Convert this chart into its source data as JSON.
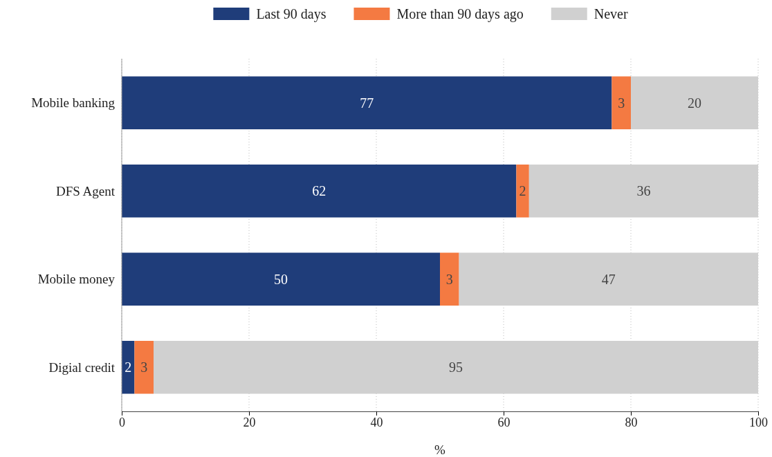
{
  "chart_data": {
    "type": "bar",
    "orientation": "horizontal",
    "stacked": true,
    "xlabel": "%",
    "categories": [
      "Mobile banking",
      "DFS Agent",
      "Mobile money",
      "Digial credit"
    ],
    "series": [
      {
        "name": "Last 90 days",
        "color": "#1f3d7a",
        "values": [
          77,
          62,
          50,
          2
        ]
      },
      {
        "name": "More than 90 days ago",
        "color": "#f47a42",
        "values": [
          3,
          2,
          3,
          3
        ]
      },
      {
        "name": "Never",
        "color": "#d0d0d0",
        "values": [
          20,
          36,
          47,
          95
        ]
      }
    ],
    "xlim": [
      0,
      100
    ],
    "xticks": [
      0,
      20,
      40,
      60,
      80,
      100
    ],
    "grid": "x",
    "legend": "top",
    "data_labels": true
  }
}
